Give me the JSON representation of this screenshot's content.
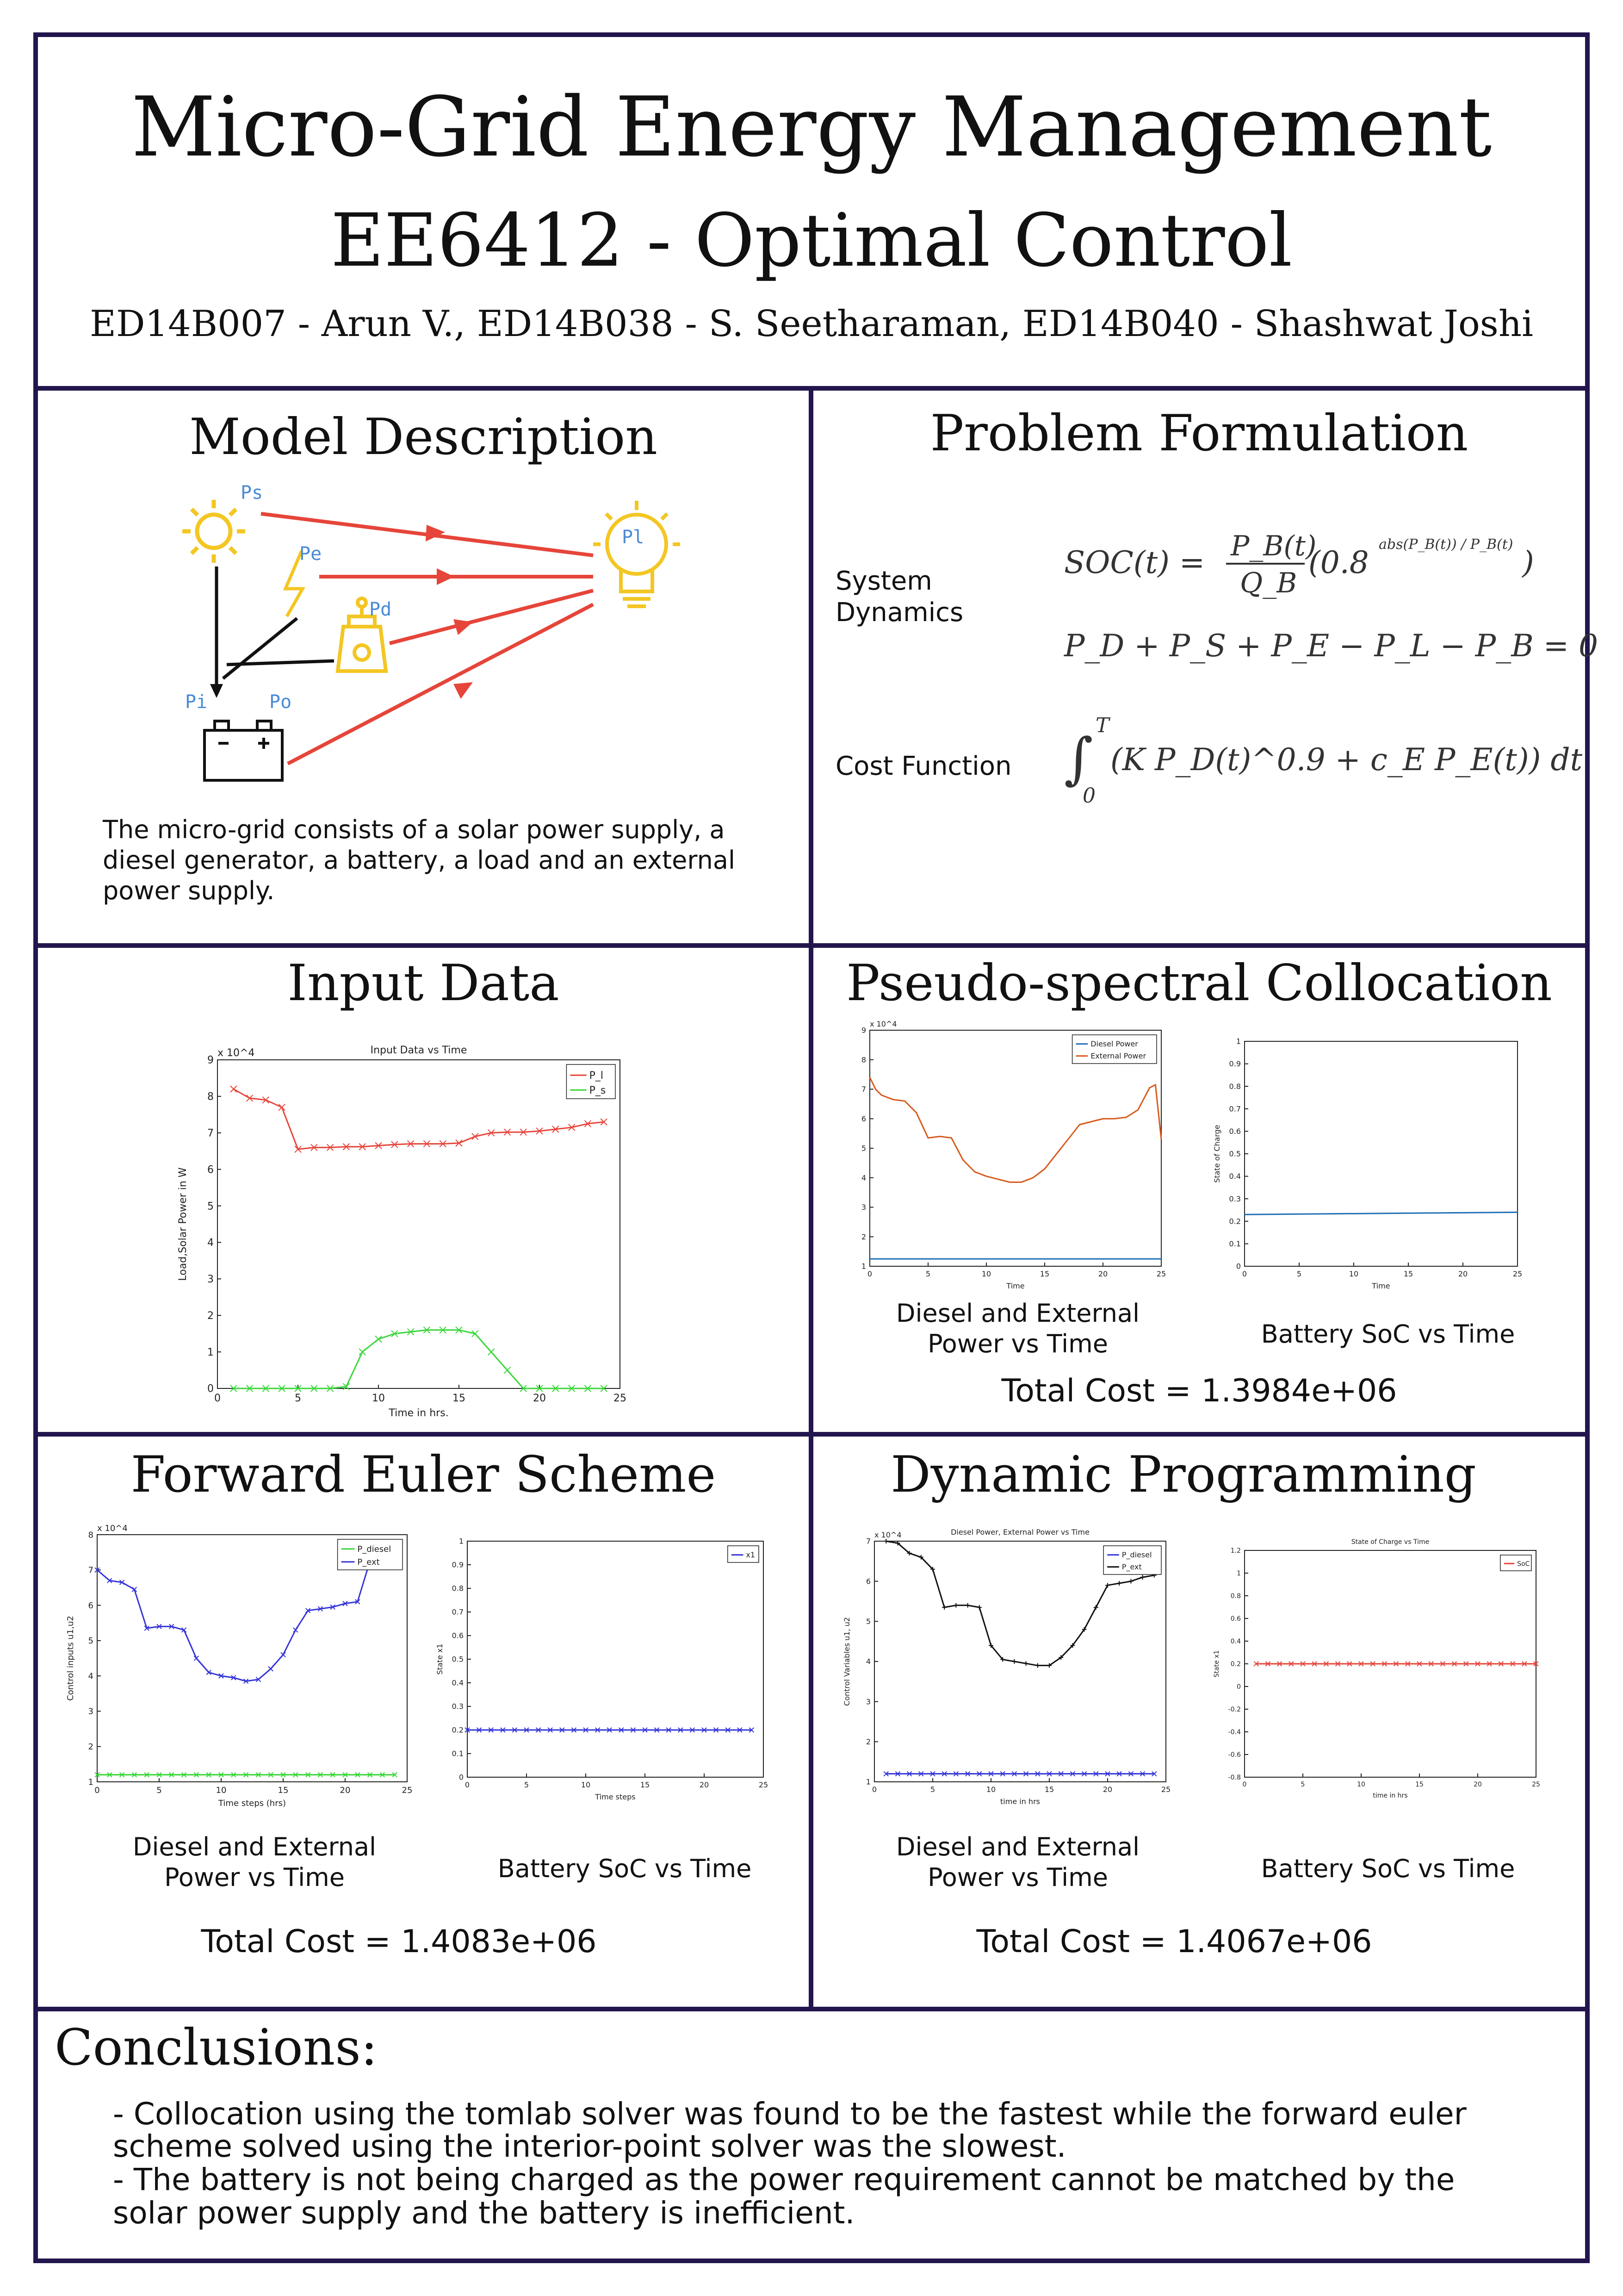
{
  "header": {
    "title": "Micro-Grid Energy Management",
    "subtitle": "EE6412 - Optimal Control",
    "authors": "ED14B007 - Arun V., ED14B038 - S. Seetharaman, ED14B040 - Shashwat Joshi"
  },
  "model": {
    "heading": "Model Description",
    "labels": {
      "ps": "Ps",
      "pe": "Pe",
      "pd": "Pd",
      "pl": "Pl",
      "pi": "Pi",
      "po": "Po"
    },
    "description": "The micro-grid consists of a solar power supply, a diesel generator, a battery, a load and an external power supply."
  },
  "problem": {
    "heading": "Problem Formulation",
    "system_dynamics_label_1": "System",
    "system_dynamics_label_2": "Dynamics",
    "cost_label": "Cost Function",
    "eq1_lhs": "SOC(t) =",
    "eq1_num": "P_B(t)",
    "eq1_den": "Q_B",
    "eq1_tail": "(0.8",
    "eq1_exp": "abs(P_B(t)) / P_B(t)",
    "eq1_close": ")",
    "eq2": "P_D + P_S + P_E − P_L − P_B = 0",
    "eq3": "(K P_D(t)^0.9 + c_E P_E(t)) dt",
    "eq3_upper": "T",
    "eq3_lower": "0"
  },
  "input_data": {
    "heading": "Input Data"
  },
  "pseudo": {
    "heading": "Pseudo-spectral Collocation",
    "cap1_line1": "Diesel and External",
    "cap1_line2": "Power vs Time",
    "cap2": "Battery SoC vs Time",
    "total": "Total Cost = 1.3984e+06"
  },
  "euler": {
    "heading": "Forward Euler Scheme",
    "cap1_line1": "Diesel and External",
    "cap1_line2": "Power vs Time",
    "cap2": "Battery SoC vs Time",
    "total": "Total Cost = 1.4083e+06"
  },
  "dp": {
    "heading": "Dynamic Programming",
    "cap1_line1": "Diesel and External",
    "cap1_line2": "Power vs Time",
    "cap2": "Battery SoC vs Time",
    "total": "Total Cost = 1.4067e+06"
  },
  "conclusions": {
    "heading": "Conclusions:",
    "line1": "- Collocation using the tomlab solver was found to be the fastest while the forward euler",
    "line2": "scheme solved using the interior-point solver was the slowest.",
    "line3": "- The battery is not being charged as the power requirement cannot be matched by the",
    "line4": "solar power supply and the battery is inefficient."
  },
  "colors": {
    "frame": "#23154d",
    "red": "#e6453a",
    "green": "#39d639",
    "blue": "#3434d8",
    "matlab_blue": "#1f6fb5",
    "matlab_orange": "#d9581a",
    "icon_yellow": "#f3c623",
    "label_blue": "#4a8ad8"
  },
  "chart_data": [
    {
      "id": "input",
      "type": "line",
      "title": "Input Data vs Time",
      "xlabel": "Time in hrs.",
      "ylabel": "Load,Solar Power in W",
      "exponent": "x 10^4",
      "xlim": [
        0,
        25
      ],
      "ylim": [
        0,
        9
      ],
      "xticks": [
        0,
        5,
        10,
        15,
        20,
        25
      ],
      "yticks": [
        0,
        1,
        2,
        3,
        4,
        5,
        6,
        7,
        8,
        9
      ],
      "legend_position": "top-right",
      "series": [
        {
          "name": "P_l",
          "color": "#e6453a",
          "marker": "x",
          "x": [
            1,
            2,
            3,
            4,
            5,
            6,
            7,
            8,
            9,
            10,
            11,
            12,
            13,
            14,
            15,
            16,
            17,
            18,
            19,
            20,
            21,
            22,
            23,
            24
          ],
          "y": [
            8.2,
            7.95,
            7.9,
            7.7,
            6.55,
            6.6,
            6.6,
            6.62,
            6.62,
            6.65,
            6.68,
            6.7,
            6.7,
            6.7,
            6.72,
            6.9,
            7.0,
            7.02,
            7.02,
            7.05,
            7.1,
            7.15,
            7.25,
            7.3
          ]
        },
        {
          "name": "P_s",
          "color": "#39d639",
          "marker": "x",
          "x": [
            1,
            2,
            3,
            4,
            5,
            6,
            7,
            8,
            9,
            10,
            11,
            12,
            13,
            14,
            15,
            16,
            17,
            18,
            19,
            20,
            21,
            22,
            23,
            24
          ],
          "y": [
            0,
            0,
            0,
            0,
            0,
            0,
            0,
            0.05,
            1.0,
            1.35,
            1.5,
            1.55,
            1.6,
            1.6,
            1.6,
            1.5,
            1.0,
            0.5,
            0,
            0,
            0,
            0,
            0,
            0
          ]
        }
      ]
    },
    {
      "id": "pseudo_power",
      "type": "line",
      "title": "",
      "xlabel": "Time",
      "ylabel": "",
      "exponent": "x 10^4",
      "xlim": [
        0,
        25
      ],
      "ylim": [
        1,
        9
      ],
      "xticks": [
        0,
        5,
        10,
        15,
        20,
        25
      ],
      "yticks": [
        1,
        2,
        3,
        4,
        5,
        6,
        7,
        8,
        9
      ],
      "legend_position": "top-right",
      "series": [
        {
          "name": "Diesel Power",
          "color": "#1f6fb5",
          "x": [
            0,
            25
          ],
          "y": [
            1.25,
            1.25
          ]
        },
        {
          "name": "External Power",
          "color": "#d9581a",
          "x": [
            0,
            0.5,
            1,
            2,
            3,
            4,
            5,
            6,
            7,
            8,
            9,
            10,
            11,
            12,
            13,
            14,
            15,
            16,
            17,
            18,
            19,
            20,
            21,
            22,
            23,
            24,
            24.5,
            25
          ],
          "y": [
            7.4,
            7.0,
            6.8,
            6.65,
            6.6,
            6.2,
            5.35,
            5.4,
            5.35,
            4.6,
            4.2,
            4.05,
            3.95,
            3.85,
            3.85,
            4.0,
            4.3,
            4.8,
            5.3,
            5.8,
            5.9,
            6.0,
            6.0,
            6.05,
            6.3,
            7.05,
            7.15,
            5.3
          ]
        }
      ]
    },
    {
      "id": "pseudo_soc",
      "type": "line",
      "title": "",
      "xlabel": "Time",
      "ylabel": "State of Charge",
      "xlim": [
        0,
        25
      ],
      "ylim": [
        0,
        1
      ],
      "xticks": [
        0,
        5,
        10,
        15,
        20,
        25
      ],
      "yticks": [
        0,
        0.1,
        0.2,
        0.3,
        0.4,
        0.5,
        0.6,
        0.7,
        0.8,
        0.9,
        1
      ],
      "series": [
        {
          "name": "",
          "color": "#1f6fb5",
          "x": [
            0,
            25
          ],
          "y": [
            0.23,
            0.24
          ]
        }
      ]
    },
    {
      "id": "euler_power",
      "type": "line",
      "title": "",
      "xlabel": "Time steps (hrs)",
      "ylabel": "Control inputs u1,u2",
      "exponent": "x 10^4",
      "xlim": [
        0,
        25
      ],
      "ylim": [
        1,
        8
      ],
      "xticks": [
        0,
        5,
        10,
        15,
        20,
        25
      ],
      "yticks": [
        1,
        2,
        3,
        4,
        5,
        6,
        7,
        8
      ],
      "legend_position": "top-right",
      "series": [
        {
          "name": "P_diesel",
          "color": "#39d639",
          "marker": "x",
          "x": [
            0,
            1,
            2,
            3,
            4,
            5,
            6,
            7,
            8,
            9,
            10,
            11,
            12,
            13,
            14,
            15,
            16,
            17,
            18,
            19,
            20,
            21,
            22,
            23,
            24
          ],
          "y": [
            1.2,
            1.2,
            1.2,
            1.2,
            1.2,
            1.2,
            1.2,
            1.2,
            1.2,
            1.2,
            1.2,
            1.2,
            1.2,
            1.2,
            1.2,
            1.2,
            1.2,
            1.2,
            1.2,
            1.2,
            1.2,
            1.2,
            1.2,
            1.2,
            1.2
          ]
        },
        {
          "name": "P_ext",
          "color": "#3434d8",
          "marker": "x",
          "x": [
            0,
            1,
            2,
            3,
            4,
            5,
            6,
            7,
            8,
            9,
            10,
            11,
            12,
            13,
            14,
            15,
            16,
            17,
            18,
            19,
            20,
            21,
            22,
            23,
            24
          ],
          "y": [
            7.0,
            6.7,
            6.65,
            6.45,
            5.35,
            5.4,
            5.4,
            5.3,
            4.5,
            4.1,
            4.0,
            3.95,
            3.85,
            3.9,
            4.2,
            4.6,
            5.3,
            5.85,
            5.9,
            5.95,
            6.05,
            6.1,
            7.25,
            7.3,
            7.35
          ]
        }
      ]
    },
    {
      "id": "euler_soc",
      "type": "line",
      "title": "",
      "xlabel": "Time steps",
      "ylabel": "State x1",
      "xlim": [
        0,
        25
      ],
      "ylim": [
        0,
        1
      ],
      "xticks": [
        0,
        5,
        10,
        15,
        20,
        25
      ],
      "yticks": [
        0,
        0.1,
        0.2,
        0.3,
        0.4,
        0.5,
        0.6,
        0.7,
        0.8,
        0.9,
        1
      ],
      "legend_position": "top-right",
      "series": [
        {
          "name": "x1",
          "color": "#3434d8",
          "marker": "x",
          "x": [
            0,
            1,
            2,
            3,
            4,
            5,
            6,
            7,
            8,
            9,
            10,
            11,
            12,
            13,
            14,
            15,
            16,
            17,
            18,
            19,
            20,
            21,
            22,
            23,
            24
          ],
          "y": [
            0.2,
            0.2,
            0.2,
            0.2,
            0.2,
            0.2,
            0.2,
            0.2,
            0.2,
            0.2,
            0.2,
            0.2,
            0.2,
            0.2,
            0.2,
            0.2,
            0.2,
            0.2,
            0.2,
            0.2,
            0.2,
            0.2,
            0.2,
            0.2,
            0.2
          ]
        }
      ]
    },
    {
      "id": "dp_power",
      "type": "line",
      "title": "Diesel Power, External Power vs Time",
      "xlabel": "time in hrs",
      "ylabel": "Control Variables u1, u2",
      "exponent": "x 10^4",
      "xlim": [
        0,
        25
      ],
      "ylim": [
        1,
        7
      ],
      "xticks": [
        0,
        5,
        10,
        15,
        20,
        25
      ],
      "yticks": [
        1,
        2,
        3,
        4,
        5,
        6,
        7
      ],
      "legend_position": "top-right",
      "series": [
        {
          "name": "P_diesel",
          "color": "#3434d8",
          "marker": "x",
          "x": [
            1,
            2,
            3,
            4,
            5,
            6,
            7,
            8,
            9,
            10,
            11,
            12,
            13,
            14,
            15,
            16,
            17,
            18,
            19,
            20,
            21,
            22,
            23,
            24
          ],
          "y": [
            1.2,
            1.2,
            1.2,
            1.2,
            1.2,
            1.2,
            1.2,
            1.2,
            1.2,
            1.2,
            1.2,
            1.2,
            1.2,
            1.2,
            1.2,
            1.2,
            1.2,
            1.2,
            1.2,
            1.2,
            1.2,
            1.2,
            1.2,
            1.2
          ]
        },
        {
          "name": "P_ext",
          "color": "#111111",
          "marker": "+",
          "x": [
            1,
            2,
            3,
            4,
            5,
            6,
            7,
            8,
            9,
            10,
            11,
            12,
            13,
            14,
            15,
            16,
            17,
            18,
            19,
            20,
            21,
            22,
            23,
            24
          ],
          "y": [
            7.0,
            6.95,
            6.7,
            6.6,
            6.3,
            5.35,
            5.4,
            5.4,
            5.35,
            4.4,
            4.05,
            4.0,
            3.95,
            3.9,
            3.9,
            4.1,
            4.4,
            4.8,
            5.35,
            5.9,
            5.95,
            6.0,
            6.1,
            6.15
          ]
        }
      ]
    },
    {
      "id": "dp_soc",
      "type": "line",
      "title": "State of Charge vs Time",
      "xlabel": "time in hrs",
      "ylabel": "State x1",
      "xlim": [
        0,
        25
      ],
      "ylim": [
        -0.8,
        1.2
      ],
      "xticks": [
        0,
        5,
        10,
        15,
        20,
        25
      ],
      "yticks": [
        -0.8,
        -0.6,
        -0.4,
        -0.2,
        0,
        0.2,
        0.4,
        0.6,
        0.8,
        1,
        1.2
      ],
      "legend_position": "top-right",
      "series": [
        {
          "name": "SoC",
          "color": "#e6453a",
          "marker": "x",
          "x": [
            1,
            2,
            3,
            4,
            5,
            6,
            7,
            8,
            9,
            10,
            11,
            12,
            13,
            14,
            15,
            16,
            17,
            18,
            19,
            20,
            21,
            22,
            23,
            24,
            25
          ],
          "y": [
            0.2,
            0.2,
            0.2,
            0.2,
            0.2,
            0.2,
            0.2,
            0.2,
            0.2,
            0.2,
            0.2,
            0.2,
            0.2,
            0.2,
            0.2,
            0.2,
            0.2,
            0.2,
            0.2,
            0.2,
            0.2,
            0.2,
            0.2,
            0.2,
            0.2
          ]
        }
      ]
    }
  ]
}
